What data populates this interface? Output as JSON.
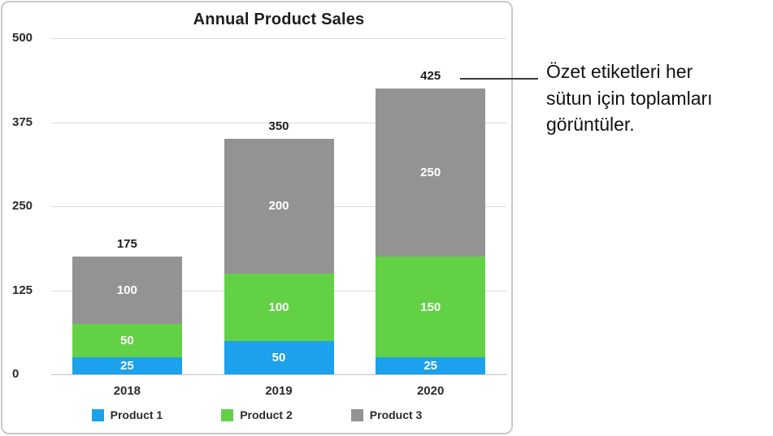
{
  "chart_data": {
    "type": "bar",
    "variant": "stacked",
    "title": "Annual Product Sales",
    "categories": [
      "2018",
      "2019",
      "2020"
    ],
    "series": [
      {
        "name": "Product 1",
        "color": "#1ca1ec",
        "values": [
          25,
          50,
          25
        ]
      },
      {
        "name": "Product 2",
        "color": "#63d146",
        "values": [
          50,
          100,
          150
        ]
      },
      {
        "name": "Product 3",
        "color": "#939393",
        "values": [
          100,
          200,
          250
        ]
      }
    ],
    "totals": [
      175,
      350,
      425
    ],
    "y_ticks": [
      0,
      125,
      250,
      375,
      500
    ],
    "ylim": [
      0,
      500
    ],
    "grid": true,
    "legend_position": "bottom"
  },
  "annotation": {
    "text": "Özet etiketleri her\nsütun için toplamları\ngörüntüler."
  }
}
